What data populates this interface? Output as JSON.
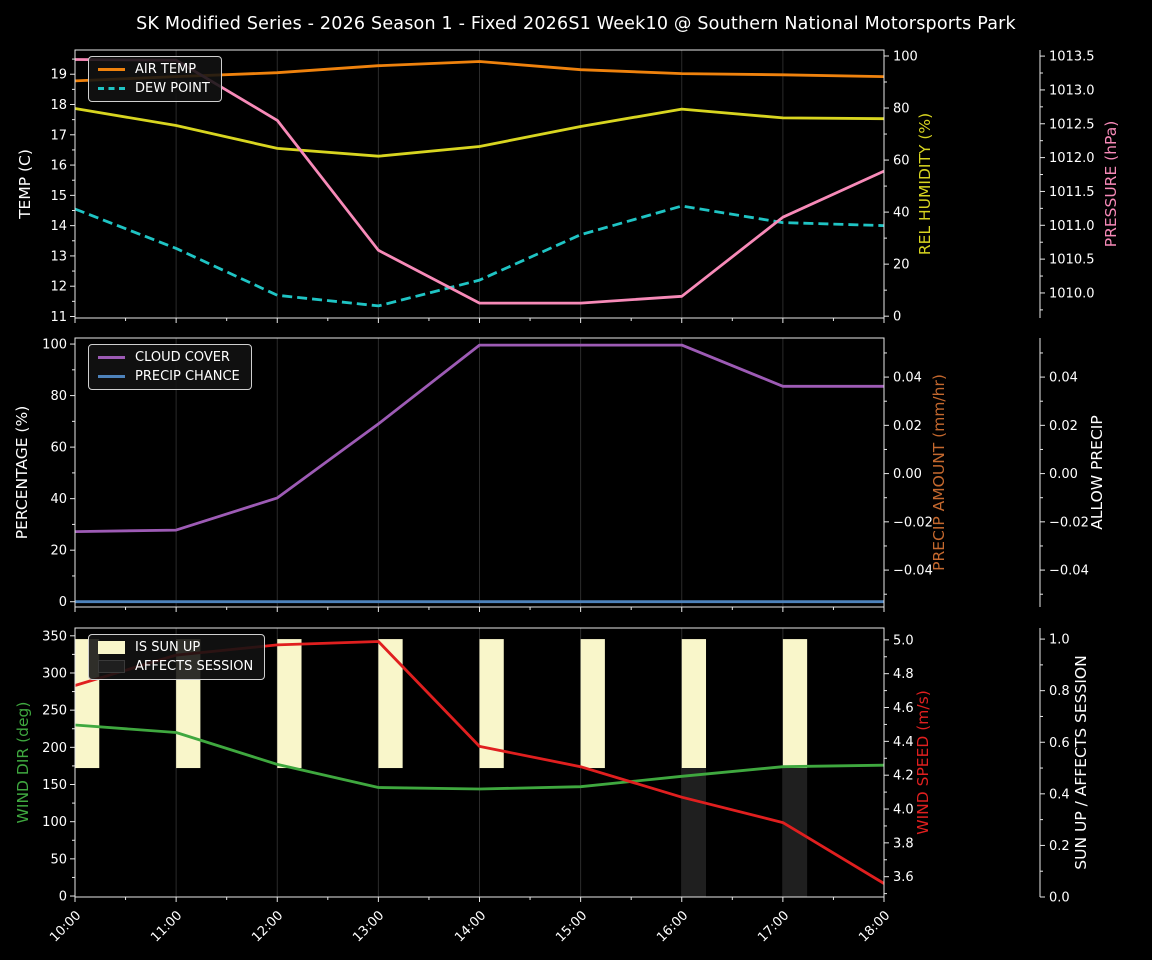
{
  "title": "SK Modified Series - 2026 Season 1 - Fixed 2026S1 Week10 @ Southern National Motorsports Park",
  "colors": {
    "background": "#000000",
    "text": "#ffffff",
    "grid": "#2b2b2b",
    "spine": "#e8e8e8",
    "air_temp": "#ef820d",
    "dew_point": "#1fc4c4",
    "rel_humidity": "#d8d520",
    "pressure": "#f78ab8",
    "cloud_cover": "#9d5bb5",
    "precip_chance": "#4d82bb",
    "precip_amount": "#c4682e",
    "wind_dir": "#3fa83f",
    "wind_speed": "#e01f1f",
    "sun_up_bar": "#f9f6ca",
    "affects_session_bar": "#1f1f1f"
  },
  "x_axis": {
    "hours": [
      10,
      11,
      12,
      13,
      14,
      15,
      16,
      17,
      18
    ],
    "tick_labels": [
      "10:00",
      "11:00",
      "12:00",
      "13:00",
      "14:00",
      "15:00",
      "16:00",
      "17:00",
      "18:00"
    ],
    "minor_step": 0.5
  },
  "chart_data": [
    {
      "type": "line",
      "id": "temp-humidity-pressure",
      "axes": {
        "left": {
          "title": "TEMP (C)",
          "title_color": "#ffffff",
          "range": [
            10.95,
            19.8
          ],
          "ticks": [
            11,
            12,
            13,
            14,
            15,
            16,
            17,
            18,
            19
          ],
          "tick_labels": [
            "11",
            "12",
            "13",
            "14",
            "15",
            "16",
            "17",
            "18",
            "19"
          ],
          "minor_step": 0.5
        },
        "right1": {
          "title": "REL HUMIDITY (%)",
          "title_color": "#d8d520",
          "range": [
            -0.7,
            102.3
          ],
          "ticks": [
            0,
            20,
            40,
            60,
            80,
            100
          ],
          "tick_labels": [
            "0",
            "20",
            "40",
            "60",
            "80",
            "100"
          ],
          "minor_step": 10
        },
        "right2": {
          "title": "PRESSURE (hPa)",
          "title_color": "#f78ab8",
          "range": [
            1009.63,
            1013.59
          ],
          "ticks": [
            1010.0,
            1010.5,
            1011.0,
            1011.5,
            1012.0,
            1012.5,
            1013.0,
            1013.5
          ],
          "tick_labels": [
            "1010.0",
            "1010.5",
            "1011.0",
            "1011.5",
            "1012.0",
            "1012.5",
            "1013.0",
            "1013.5"
          ],
          "minor_step": 0.25
        }
      },
      "series": [
        {
          "name": "AIR TEMP",
          "axis": "left",
          "color": "#ef820d",
          "dashed": false,
          "values": [
            18.78,
            18.92,
            19.05,
            19.28,
            19.42,
            19.15,
            19.02,
            18.98,
            18.92
          ]
        },
        {
          "name": "DEW POINT",
          "axis": "left",
          "color": "#1fc4c4",
          "dashed": true,
          "values": [
            14.55,
            13.25,
            11.7,
            11.35,
            12.2,
            13.7,
            14.65,
            14.1,
            14.0
          ]
        },
        {
          "name": "REL HUMIDITY",
          "axis": "right1",
          "color": "#d8d520",
          "dashed": false,
          "values": [
            79.8,
            73.3,
            64.5,
            61.5,
            65.2,
            72.9,
            79.6,
            76.2,
            75.9
          ]
        },
        {
          "name": "PRESSURE",
          "axis": "right2",
          "color": "#f78ab8",
          "dashed": false,
          "values": [
            1013.45,
            1013.44,
            1012.55,
            1010.63,
            1009.85,
            1009.85,
            1009.95,
            1011.12,
            1011.8
          ]
        }
      ],
      "legend": [
        {
          "label": "AIR TEMP",
          "color": "#ef820d",
          "style": "line"
        },
        {
          "label": "DEW POINT",
          "color": "#1fc4c4",
          "style": "dashed"
        }
      ]
    },
    {
      "type": "line",
      "id": "cloud-precip",
      "axes": {
        "left": {
          "title": "PERCENTAGE (%)",
          "title_color": "#ffffff",
          "range": [
            -2.05,
            102.35
          ],
          "ticks": [
            0,
            20,
            40,
            60,
            80,
            100
          ],
          "tick_labels": [
            "0",
            "20",
            "40",
            "60",
            "80",
            "100"
          ],
          "minor_step": 10
        },
        "right1": {
          "title": "PRECIP AMOUNT (mm/hr)",
          "title_color": "#c4682e",
          "range": [
            -0.0553,
            0.0562
          ],
          "ticks": [
            -0.04,
            -0.02,
            0.0,
            0.02,
            0.04
          ],
          "tick_labels": [
            "−0.04",
            "−0.02",
            "0.00",
            "0.02",
            "0.04"
          ],
          "minor_step": 0.01
        },
        "right2": {
          "title": "ALLOW PRECIP",
          "title_color": "#ffffff",
          "range": [
            -0.0553,
            0.0562
          ],
          "ticks": [
            -0.04,
            -0.02,
            0.0,
            0.02,
            0.04
          ],
          "tick_labels": [
            "−0.04",
            "−0.02",
            "0.00",
            "0.02",
            "0.04"
          ],
          "minor_step": 0.01
        }
      },
      "series": [
        {
          "name": "CLOUD COVER",
          "axis": "left",
          "color": "#9d5bb5",
          "dashed": false,
          "values": [
            27.2,
            27.8,
            40.3,
            69.0,
            99.6,
            99.6,
            99.6,
            83.6,
            83.6
          ]
        },
        {
          "name": "PRECIP CHANCE",
          "axis": "left",
          "color": "#4d82bb",
          "dashed": false,
          "values": [
            0,
            0,
            0,
            0,
            0,
            0,
            0,
            0,
            0
          ]
        }
      ],
      "legend": [
        {
          "label": "CLOUD COVER",
          "color": "#9d5bb5",
          "style": "line"
        },
        {
          "label": "PRECIP CHANCE",
          "color": "#4d82bb",
          "style": "line"
        }
      ]
    },
    {
      "type": "line+bar",
      "id": "wind-sun",
      "axes": {
        "left": {
          "title": "WIND DIR (deg)",
          "title_color": "#3fa83f",
          "range": [
            -1.3,
            360.5
          ],
          "ticks": [
            0,
            50,
            100,
            150,
            200,
            250,
            300,
            350
          ],
          "tick_labels": [
            "0",
            "50",
            "100",
            "150",
            "200",
            "250",
            "300",
            "350"
          ],
          "minor_step": 25
        },
        "right1": {
          "title": "WIND SPEED (m/s)",
          "title_color": "#e01f1f",
          "range": [
            3.48,
            5.07
          ],
          "ticks": [
            3.6,
            3.8,
            4.0,
            4.2,
            4.4,
            4.6,
            4.8,
            5.0
          ],
          "tick_labels": [
            "3.6",
            "3.8",
            "4.0",
            "4.2",
            "4.4",
            "4.6",
            "4.8",
            "5.0"
          ],
          "minor_step": 0.1
        },
        "right2": {
          "title": "SUN UP / AFFECTS SESSION",
          "title_color": "#ffffff",
          "range": [
            0,
            1.043
          ],
          "ticks": [
            0.0,
            0.2,
            0.4,
            0.6,
            0.8,
            1.0
          ],
          "tick_labels": [
            "0.0",
            "0.2",
            "0.4",
            "0.6",
            "0.8",
            "1.0"
          ],
          "minor_step": 0.1
        }
      },
      "bars": [
        {
          "name": "IS SUN UP",
          "color": "#f9f6ca",
          "axis": "right2",
          "segment": [
            0.5,
            1.0
          ],
          "values": [
            1,
            1,
            1,
            1,
            1,
            1,
            1,
            1,
            0
          ],
          "width_hours": 0.24
        },
        {
          "name": "AFFECTS SESSION",
          "color": "#1f1f1f",
          "axis": "right2",
          "segment": [
            0.0,
            0.5
          ],
          "values": [
            0,
            0,
            0,
            0,
            0,
            0,
            1,
            1,
            0
          ],
          "width_hours": 0.24
        }
      ],
      "series": [
        {
          "name": "WIND DIR",
          "axis": "left",
          "color": "#3fa83f",
          "dashed": false,
          "values": [
            230,
            220,
            177,
            146,
            144,
            147,
            161,
            174,
            176
          ]
        },
        {
          "name": "WIND SPEED",
          "axis": "right1",
          "color": "#e01f1f",
          "dashed": false,
          "values": [
            4.73,
            4.91,
            4.97,
            4.99,
            4.37,
            4.25,
            4.07,
            3.92,
            3.56
          ]
        }
      ],
      "legend": [
        {
          "label": "IS SUN UP",
          "color": "#f9f6ca",
          "style": "patch"
        },
        {
          "label": "AFFECTS SESSION",
          "color": "#1f1f1f",
          "style": "patch",
          "border": "#3a3a3a"
        }
      ]
    }
  ]
}
